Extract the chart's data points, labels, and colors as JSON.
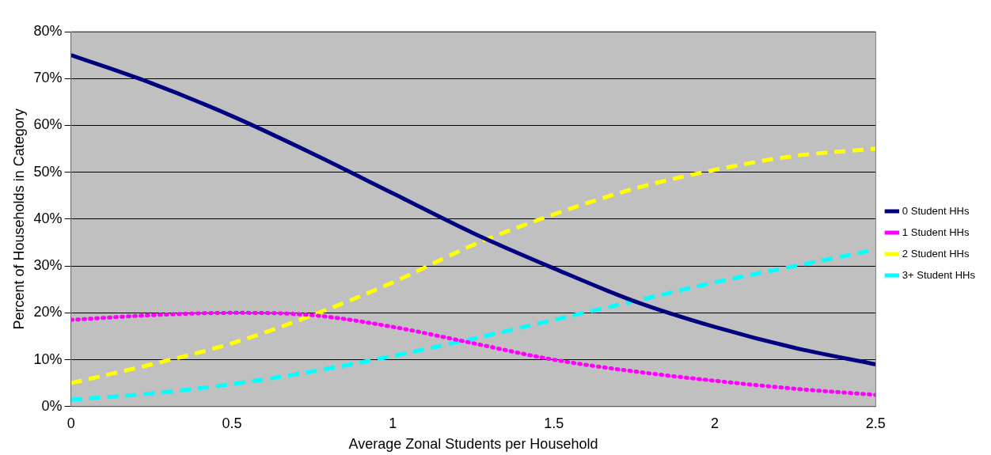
{
  "chart_data": {
    "type": "line",
    "xlabel": "Average Zonal Students per Household",
    "ylabel": "Percent of Households in Category",
    "x": [
      0,
      0.25,
      0.5,
      0.75,
      1,
      1.25,
      1.5,
      1.75,
      2,
      2.25,
      2.5
    ],
    "series": [
      {
        "name": "0 Student HHs",
        "color": "#000080",
        "line_style": "solid",
        "values": [
          75,
          69,
          62,
          54,
          45.5,
          37,
          29.5,
          22.5,
          17,
          12.5,
          9
        ]
      },
      {
        "name": "1 Student HHs",
        "color": "#ff00ff",
        "line_style": "dotted",
        "values": [
          18.5,
          19.5,
          20,
          19.5,
          17,
          13.5,
          10,
          7.5,
          5.5,
          3.8,
          2.5
        ]
      },
      {
        "name": "2 Student HHs",
        "color": "#ffff00",
        "line_style": "dashed",
        "values": [
          5,
          9,
          13.5,
          19.5,
          26.5,
          34.5,
          41,
          46.5,
          50.5,
          53.5,
          55
        ]
      },
      {
        "name": "3+ Student HHs",
        "color": "#00ffff",
        "line_style": "dashed",
        "values": [
          1.5,
          2.8,
          4.8,
          7.5,
          10.8,
          14.5,
          18.5,
          22.5,
          26.5,
          30,
          33.5
        ]
      }
    ],
    "xlim": [
      0,
      2.5
    ],
    "xticks": [
      0,
      0.5,
      1,
      1.5,
      2,
      2.5
    ],
    "ylim": [
      0,
      80
    ],
    "yticks": [
      {
        "value": 0,
        "label": "0%"
      },
      {
        "value": 10,
        "label": "10%"
      },
      {
        "value": 20,
        "label": "20%"
      },
      {
        "value": 30,
        "label": "30%"
      },
      {
        "value": 40,
        "label": "40%"
      },
      {
        "value": 50,
        "label": "50%"
      },
      {
        "value": 60,
        "label": "60%"
      },
      {
        "value": 70,
        "label": "70%"
      },
      {
        "value": 80,
        "label": "80%"
      }
    ],
    "grid": "y",
    "legend": "right",
    "marker": "none"
  }
}
